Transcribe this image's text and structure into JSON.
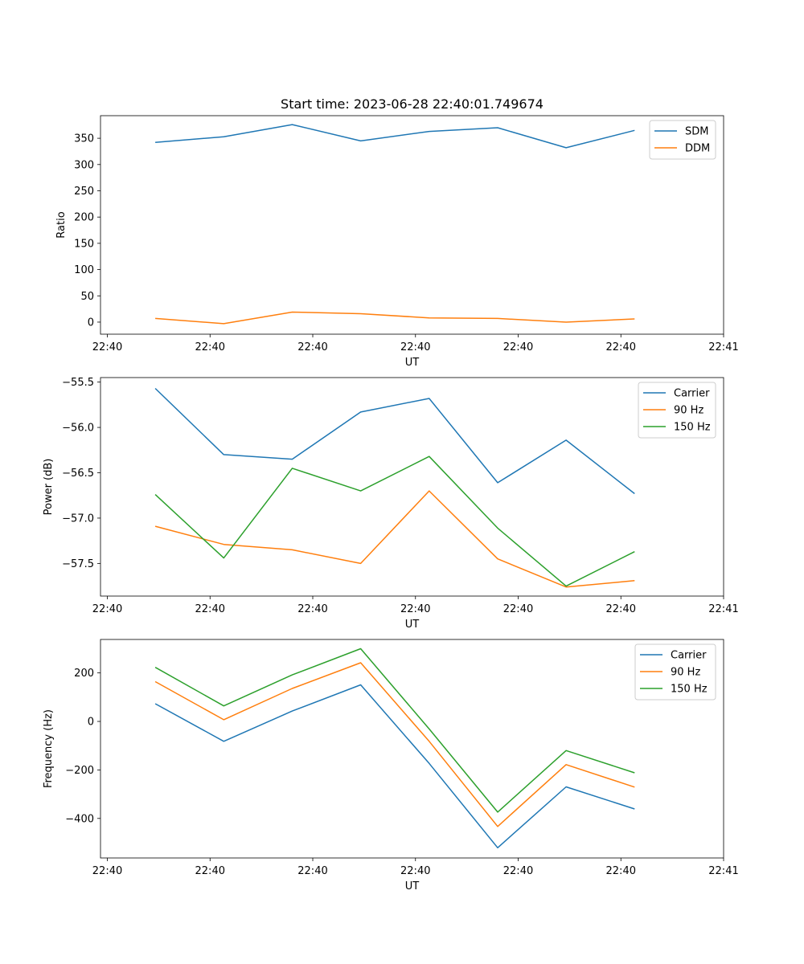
{
  "chart_data": [
    {
      "type": "line",
      "title": "Start time: 2023-06-28 22:40:01.749674",
      "xlabel": "UT",
      "ylabel": "Ratio",
      "x_ticks": [
        "22:40",
        "22:40",
        "22:40",
        "22:40",
        "22:40",
        "22:40",
        "22:40",
        "22:41"
      ],
      "x": [
        1,
        2,
        3,
        4,
        5,
        6,
        7,
        8
      ],
      "xlim": [
        0.2,
        9.3
      ],
      "ylim": [
        -23,
        393
      ],
      "yticks": [
        0,
        50,
        100,
        150,
        200,
        250,
        300,
        350
      ],
      "ytick_labels": [
        "0",
        "50",
        "100",
        "150",
        "200",
        "250",
        "300",
        "350"
      ],
      "legend": "top-right",
      "series": [
        {
          "name": "SDM",
          "color": "#1f77b4",
          "values": [
            342,
            353,
            376,
            345,
            363,
            370,
            332,
            365
          ]
        },
        {
          "name": "DDM",
          "color": "#ff7f0e",
          "values": [
            7,
            -3,
            19,
            16,
            8,
            7,
            0,
            6
          ]
        }
      ]
    },
    {
      "type": "line",
      "title": "",
      "xlabel": "UT",
      "ylabel": "Power (dB)",
      "x_ticks": [
        "22:40",
        "22:40",
        "22:40",
        "22:40",
        "22:40",
        "22:40",
        "22:40",
        "22:41"
      ],
      "x": [
        1,
        2,
        3,
        4,
        5,
        6,
        7,
        8
      ],
      "xlim": [
        0.2,
        9.3
      ],
      "ylim": [
        -57.86,
        -55.45
      ],
      "yticks": [
        -55.5,
        -56.0,
        -56.5,
        -57.0,
        -57.5
      ],
      "ytick_labels": [
        "−55.5",
        "−56.0",
        "−56.5",
        "−57.0",
        "−57.5"
      ],
      "legend": "top-right",
      "series": [
        {
          "name": "Carrier",
          "color": "#1f77b4",
          "values": [
            -55.57,
            -56.3,
            -56.35,
            -55.83,
            -55.68,
            -56.61,
            -56.14,
            -56.73
          ]
        },
        {
          "name": "90 Hz",
          "color": "#ff7f0e",
          "values": [
            -57.09,
            -57.29,
            -57.35,
            -57.5,
            -56.7,
            -57.45,
            -57.76,
            -57.69
          ]
        },
        {
          "name": "150 Hz",
          "color": "#2ca02c",
          "values": [
            -56.74,
            -57.44,
            -56.45,
            -56.7,
            -56.32,
            -57.11,
            -57.75,
            -57.37
          ]
        }
      ]
    },
    {
      "type": "line",
      "title": "",
      "xlabel": "UT",
      "ylabel": "Frequency (Hz)",
      "x_ticks": [
        "22:40",
        "22:40",
        "22:40",
        "22:40",
        "22:40",
        "22:40",
        "22:40",
        "22:41"
      ],
      "x": [
        1,
        2,
        3,
        4,
        5,
        6,
        7,
        8
      ],
      "xlim": [
        0.2,
        9.3
      ],
      "ylim": [
        -563,
        338
      ],
      "yticks": [
        200,
        0,
        -200,
        -400
      ],
      "ytick_labels": [
        "200",
        "0",
        "−200",
        "−400"
      ],
      "legend": "top-right",
      "series": [
        {
          "name": "Carrier",
          "color": "#1f77b4",
          "values": [
            73,
            -82,
            43,
            151,
            -173,
            -521,
            -270,
            -361
          ]
        },
        {
          "name": "90 Hz",
          "color": "#ff7f0e",
          "values": [
            164,
            7,
            136,
            242,
            -82,
            -433,
            -178,
            -271
          ]
        },
        {
          "name": "150 Hz",
          "color": "#2ca02c",
          "values": [
            223,
            64,
            192,
            300,
            -31,
            -374,
            -120,
            -212
          ]
        }
      ]
    }
  ]
}
